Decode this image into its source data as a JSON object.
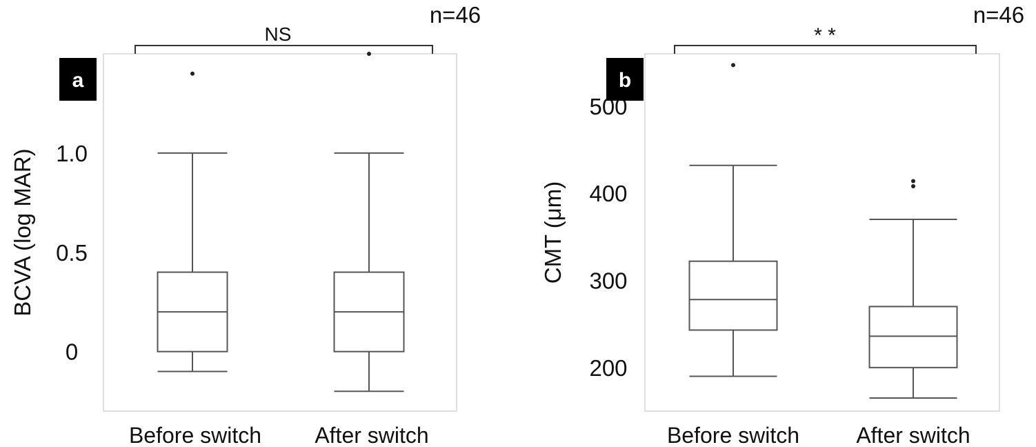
{
  "chart_data": [
    {
      "type": "box",
      "panel_label": "a",
      "ylabel": "BCVA (log MAR)",
      "n_label": "n=46",
      "significance": "NS",
      "categories": [
        "Before switch",
        "After switch"
      ],
      "y_ticks": [
        {
          "value": 0,
          "label": "0"
        },
        {
          "value": 0.5,
          "label": "0.5"
        },
        {
          "value": 1.0,
          "label": "1.0"
        }
      ],
      "ylim": [
        -0.3,
        1.5
      ],
      "boxes": [
        {
          "whisker_low": -0.1,
          "q1": 0,
          "median": 0.2,
          "q3": 0.4,
          "whisker_high": 1.0,
          "outliers": [
            1.4
          ]
        },
        {
          "whisker_low": -0.2,
          "q1": 0,
          "median": 0.2,
          "q3": 0.4,
          "whisker_high": 1.0,
          "outliers": [
            1.5
          ]
        }
      ]
    },
    {
      "type": "box",
      "panel_label": "b",
      "ylabel": "CMT (μm)",
      "n_label": "n=46",
      "significance": "* *",
      "categories": [
        "Before switch",
        "After switch"
      ],
      "y_ticks": [
        {
          "value": 200,
          "label": "200"
        },
        {
          "value": 300,
          "label": "300"
        },
        {
          "value": 400,
          "label": "400"
        },
        {
          "value": 500,
          "label": "500"
        }
      ],
      "ylim": [
        150,
        560
      ],
      "boxes": [
        {
          "whisker_low": 190,
          "q1": 243,
          "median": 278,
          "q3": 322,
          "whisker_high": 432,
          "outliers": [
            547
          ]
        },
        {
          "whisker_low": 165,
          "q1": 200,
          "median": 236,
          "q3": 270,
          "whisker_high": 370,
          "outliers": [
            408,
            414
          ]
        }
      ]
    }
  ]
}
